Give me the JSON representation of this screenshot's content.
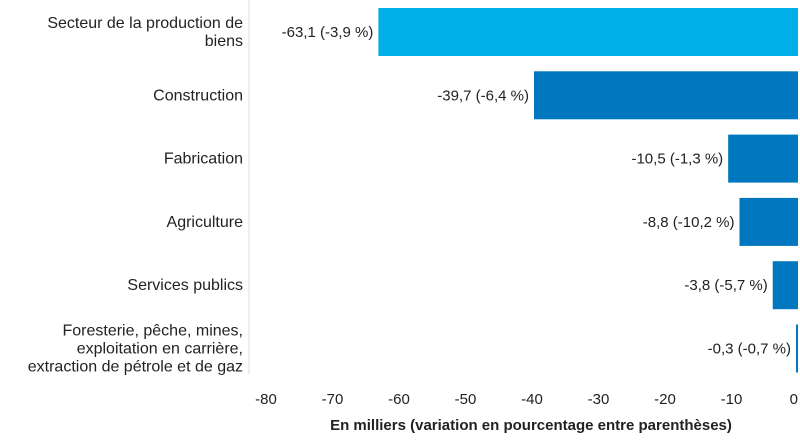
{
  "chart_data": {
    "type": "bar",
    "orientation": "horizontal",
    "categories": [
      [
        "Secteur de la production de",
        "biens"
      ],
      [
        "Construction"
      ],
      [
        "Fabrication"
      ],
      [
        "Agriculture"
      ],
      [
        "Services publics"
      ],
      [
        "Foresterie, pêche, mines,",
        "exploitation en carrière,",
        "extraction de pétrole et de gaz"
      ]
    ],
    "values": [
      -63.1,
      -39.7,
      -10.5,
      -8.8,
      -3.8,
      -0.3
    ],
    "value_labels": [
      "-63,1 (-3,9 %)",
      "-39,7 (-6,4 %)",
      "-10,5 (-1,3 %)",
      "-8,8 (-10,2 %)",
      "-3,8 (-5,7 %)",
      "-0,3 (-0,7 %)"
    ],
    "bar_colors": [
      "#00b0e6",
      "#0077be",
      "#0077be",
      "#0077be",
      "#0077be",
      "#0077be"
    ],
    "xlim": [
      -80,
      0
    ],
    "xticks": [
      -80,
      -70,
      -60,
      -50,
      -40,
      -30,
      -20,
      -10,
      0
    ],
    "xtick_labels": [
      "-80",
      "-70",
      "-60",
      "-50",
      "-40",
      "-30",
      "-20",
      "-10",
      "0"
    ],
    "xlabel": "En milliers (variation en pourcentage entre parenthèses)",
    "grid": false
  }
}
